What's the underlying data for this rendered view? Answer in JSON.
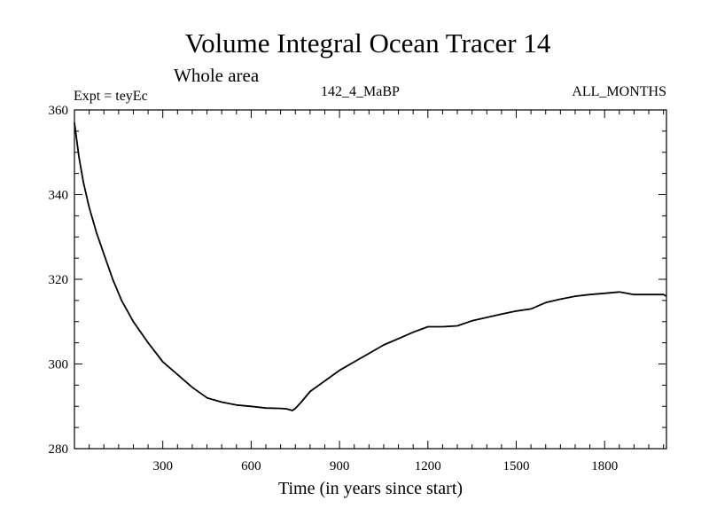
{
  "chart_data": {
    "type": "line",
    "title": "Volume Integral Ocean Tracer 14",
    "subtitle": "Whole area",
    "experiment_label": "Expt = teyEc",
    "run_label": "142_4_MaBP",
    "period_label": "ALL_MONTHS",
    "xlabel": "Time (in years since start)",
    "ylabel": "",
    "xlim": [
      0,
      2010
    ],
    "ylim": [
      280,
      360
    ],
    "x_ticks": [
      300,
      600,
      900,
      1200,
      1500,
      1800
    ],
    "y_ticks": [
      280,
      300,
      320,
      340,
      360
    ],
    "x_tick_labels": [
      "300",
      "600",
      "900",
      "1200",
      "1500",
      "1800"
    ],
    "y_tick_labels": [
      "280",
      "300",
      "320",
      "340",
      "360"
    ],
    "series": [
      {
        "name": "Tracer 14",
        "color": "#000000",
        "x": [
          0,
          15,
          30,
          50,
          75,
          100,
          130,
          160,
          200,
          250,
          300,
          350,
          400,
          450,
          500,
          550,
          600,
          650,
          700,
          720,
          740,
          750,
          770,
          800,
          850,
          900,
          950,
          1000,
          1050,
          1100,
          1150,
          1200,
          1250,
          1300,
          1350,
          1400,
          1450,
          1500,
          1550,
          1600,
          1650,
          1700,
          1750,
          1800,
          1850,
          1900,
          1950,
          2000,
          2010
        ],
        "values": [
          357,
          349,
          343,
          337,
          331,
          326,
          320,
          315,
          310,
          305,
          300.5,
          297.5,
          294.5,
          292,
          291,
          290.3,
          290,
          289.6,
          289.5,
          289.4,
          289,
          289.5,
          291,
          293.5,
          296,
          298.5,
          300.5,
          302.5,
          304.5,
          306,
          307.5,
          308.8,
          308.8,
          309,
          310.2,
          311,
          311.8,
          312.5,
          313,
          314.5,
          315.3,
          316,
          316.4,
          316.7,
          317,
          316.4,
          316.4,
          316.4,
          316
        ]
      }
    ]
  }
}
